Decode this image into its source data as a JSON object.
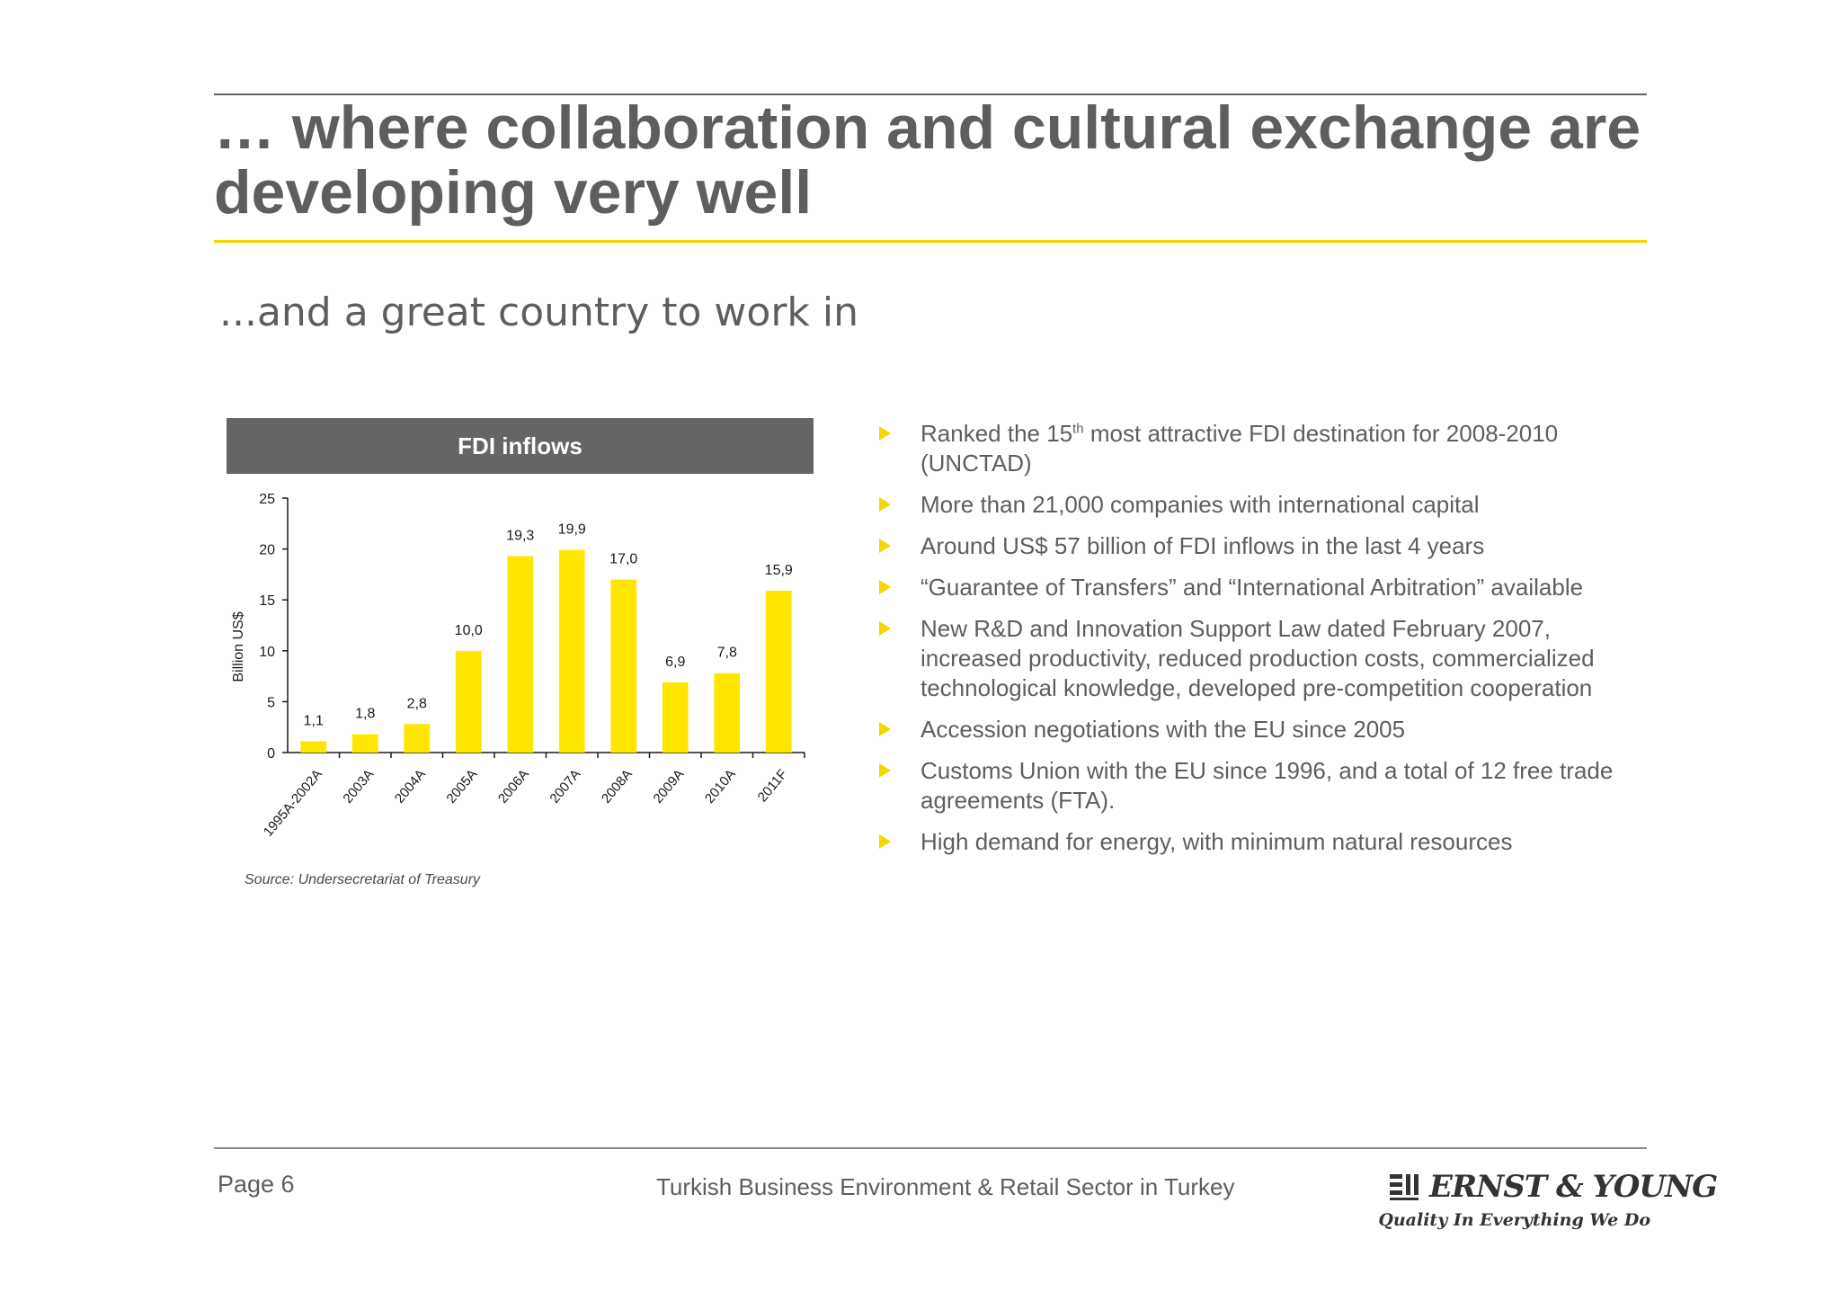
{
  "slide": {
    "title": "… where collaboration and cultural exchange are developing very well",
    "subtitle": "...and a great country to work in",
    "source": "Source: Undersecretariat of Treasury"
  },
  "bullets": [
    {
      "pre": "Ranked the 15",
      "sup": "th",
      "post": " most attractive FDI destination for 2008-2010 (UNCTAD)"
    },
    {
      "pre": "More than 21,000 companies with international capital"
    },
    {
      "pre": "Around US$ 57 billion of FDI inflows in the last 4 years"
    },
    {
      "pre": "“Guarantee of Transfers” and “International Arbitration” available"
    },
    {
      "pre": "New R&D and Innovation Support Law dated February 2007, increased productivity, reduced production costs, commercialized technological knowledge, developed pre-competition cooperation"
    },
    {
      "pre": "Accession negotiations with the EU since 2005"
    },
    {
      "pre": "Customs Union with the EU since 1996, and a total of 12 free trade agreements (FTA)."
    },
    {
      "pre": "High demand for energy, with minimum natural resources"
    }
  ],
  "footer": {
    "page": "Page 6",
    "center": "Turkish Business Environment & Retail Sector in Turkey",
    "logo_name": "ERNST & YOUNG",
    "logo_tagline": "Quality In Everything We Do"
  },
  "colors": {
    "bar": "#ffe600",
    "header_bg": "#666466",
    "accent": "#f6d600",
    "text": "#5f5e5e"
  },
  "chart_data": {
    "type": "bar",
    "title": "FDI inflows",
    "ylabel": "Billion US$",
    "xlabel": "",
    "ylim": [
      0,
      25
    ],
    "yticks": [
      0,
      5,
      10,
      15,
      20,
      25
    ],
    "categories": [
      "1995A-2002A",
      "2003A",
      "2004A",
      "2005A",
      "2006A",
      "2007A",
      "2008A",
      "2009A",
      "2010A",
      "2011F"
    ],
    "values": [
      1.1,
      1.8,
      2.8,
      10.0,
      19.3,
      19.9,
      17.0,
      6.9,
      7.8,
      15.9
    ],
    "labels": [
      "1,1",
      "1,8",
      "2,8",
      "10,0",
      "19,3",
      "19,9",
      "17,0",
      "6,9",
      "7,8",
      "15,9"
    ],
    "grid": false,
    "legend": "none"
  }
}
